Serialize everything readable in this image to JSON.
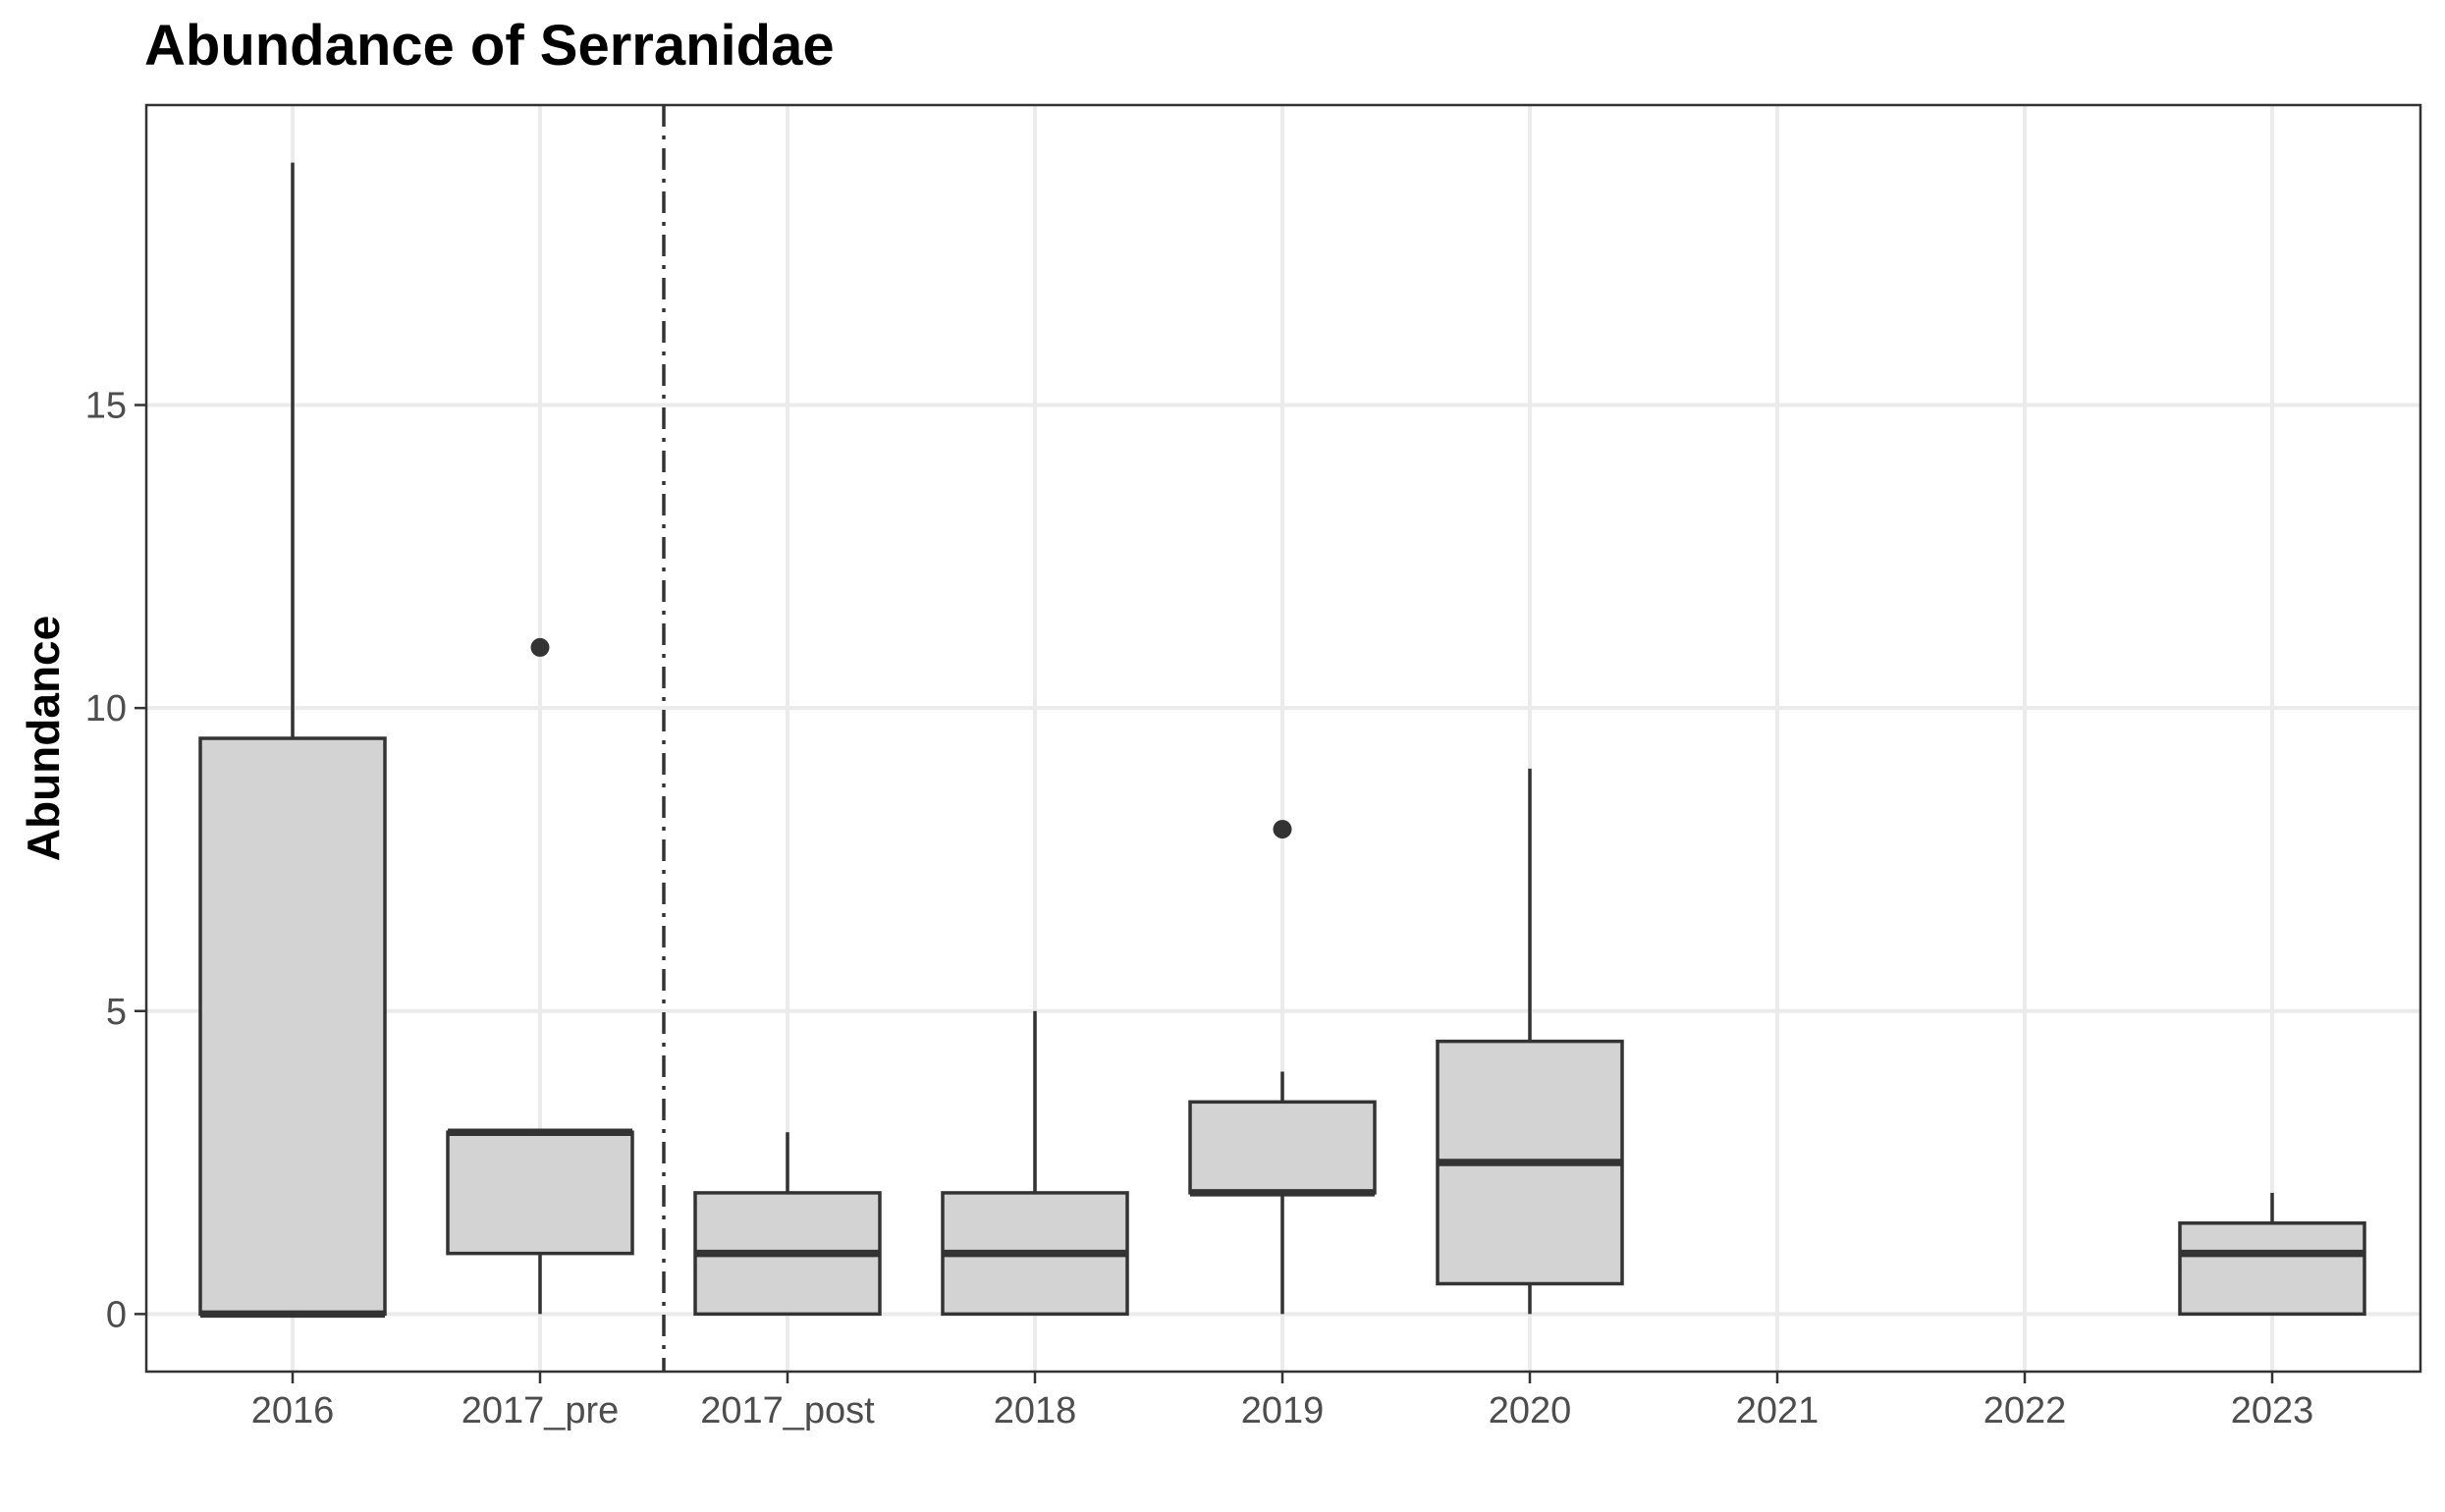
{
  "chart_data": {
    "type": "boxplot",
    "title": "Abundance of Serranidae",
    "xlabel": "",
    "ylabel": "Abundance",
    "categories": [
      "2016",
      "2017_pre",
      "2017_post",
      "2018",
      "2019",
      "2020",
      "2021",
      "2022",
      "2023"
    ],
    "yticks": [
      "0",
      "5",
      "10",
      "15"
    ],
    "ylim": [
      -0.95,
      19.95
    ],
    "grid": true,
    "reference_line": {
      "between": [
        "2017_pre",
        "2017_post"
      ],
      "style": "dashdot"
    },
    "boxes": [
      {
        "category": "2016",
        "lower_whisker": 0,
        "q1": 0,
        "median": 0,
        "q3": 9.5,
        "upper_whisker": 19,
        "outliers": []
      },
      {
        "category": "2017_pre",
        "lower_whisker": 0,
        "q1": 1,
        "median": 3,
        "q3": 3,
        "upper_whisker": 3,
        "outliers": [
          11
        ]
      },
      {
        "category": "2017_post",
        "lower_whisker": 0,
        "q1": 0,
        "median": 1,
        "q3": 2,
        "upper_whisker": 3,
        "outliers": []
      },
      {
        "category": "2018",
        "lower_whisker": 0,
        "q1": 0,
        "median": 1,
        "q3": 2,
        "upper_whisker": 5,
        "outliers": []
      },
      {
        "category": "2019",
        "lower_whisker": 0,
        "q1": 2,
        "median": 2,
        "q3": 3.5,
        "upper_whisker": 4,
        "outliers": [
          8
        ]
      },
      {
        "category": "2020",
        "lower_whisker": 0,
        "q1": 0.5,
        "median": 2.5,
        "q3": 4.5,
        "upper_whisker": 9,
        "outliers": []
      },
      {
        "category": "2023",
        "lower_whisker": 0,
        "q1": 0,
        "median": 1,
        "q3": 1.5,
        "upper_whisker": 2,
        "outliers": []
      }
    ],
    "colors": {
      "box_fill": "#d3d3d3",
      "box_stroke": "#333333",
      "grid": "#ebebeb",
      "panel_border": "#333333"
    }
  }
}
